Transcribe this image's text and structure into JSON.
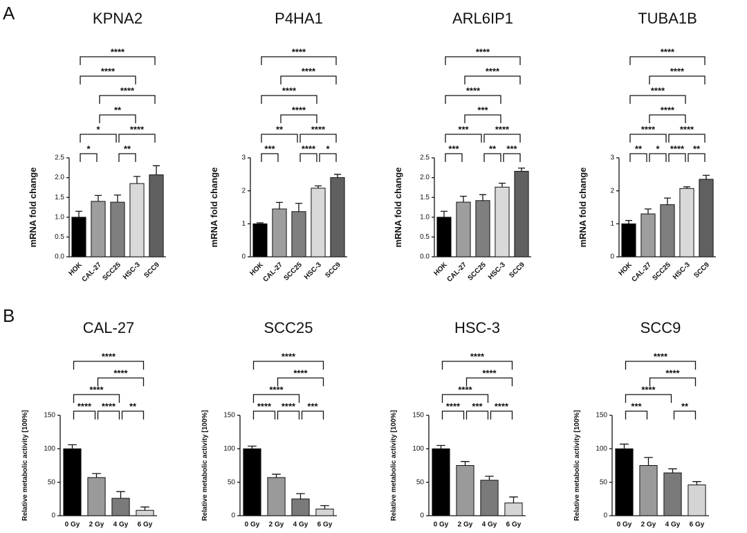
{
  "panel_labels": [
    "A",
    "B"
  ],
  "chart_data": [
    {
      "type": "bar",
      "title": "KPNA2",
      "y_label": "mRNA fold change",
      "categories": [
        "HOK",
        "CAL-27",
        "SCC25",
        "HSC-3",
        "SCC9"
      ],
      "values": [
        1.0,
        1.4,
        1.38,
        1.85,
        2.07
      ],
      "errors": [
        0.15,
        0.15,
        0.18,
        0.18,
        0.23
      ],
      "colors": [
        "#000000",
        "#9e9e9e",
        "#7f7f7f",
        "#d9d9d9",
        "#606060"
      ],
      "ylim": [
        0,
        2.5
      ],
      "yticks": [
        {
          "value": 0,
          "label": "0.0"
        },
        0.5,
        {
          "value": 1,
          "label": "1.0"
        },
        1.5,
        {
          "value": 2,
          "label": "2.0"
        },
        2.5
      ],
      "brackets": [
        {
          "from": "HOK",
          "to": "SCC9",
          "label": "****"
        },
        {
          "from": "HOK",
          "to": "HSC-3",
          "label": "****"
        },
        {
          "from": "CAL-27",
          "to": "SCC9",
          "label": "****"
        },
        {
          "from": "CAL-27",
          "to": "HSC-3",
          "label": "**"
        },
        {
          "from": "HOK",
          "to": "SCC25",
          "label": "*"
        },
        {
          "from": "SCC25",
          "to": "SCC9",
          "label": "****"
        },
        {
          "from": "HOK",
          "to": "CAL-27",
          "label": "*"
        },
        {
          "from": "SCC25",
          "to": "HSC-3",
          "label": "**"
        }
      ]
    },
    {
      "type": "bar",
      "title": "P4HA1",
      "y_label": "mRNA fold change",
      "categories": [
        "HOK",
        "CAL-27",
        "SCC25",
        "HSC-3",
        "SCC9"
      ],
      "values": [
        1.0,
        1.45,
        1.37,
        2.08,
        2.4
      ],
      "errors": [
        0.03,
        0.2,
        0.25,
        0.07,
        0.1
      ],
      "colors": [
        "#000000",
        "#9e9e9e",
        "#7f7f7f",
        "#d9d9d9",
        "#606060"
      ],
      "ylim": [
        0,
        3
      ],
      "yticks": [
        0,
        1,
        2,
        3
      ],
      "brackets": [
        {
          "from": "HOK",
          "to": "SCC9",
          "label": "****"
        },
        {
          "from": "CAL-27",
          "to": "SCC9",
          "label": "****"
        },
        {
          "from": "HOK",
          "to": "HSC-3",
          "label": "****"
        },
        {
          "from": "CAL-27",
          "to": "HSC-3",
          "label": "****"
        },
        {
          "from": "HOK",
          "to": "SCC25",
          "label": "**"
        },
        {
          "from": "SCC25",
          "to": "SCC9",
          "label": "****"
        },
        {
          "from": "HOK",
          "to": "CAL-27",
          "label": "***"
        },
        {
          "from": "SCC25",
          "to": "HSC-3",
          "label": "****"
        },
        {
          "from": "HSC-3",
          "to": "SCC9",
          "label": "*"
        }
      ]
    },
    {
      "type": "bar",
      "title": "ARL6IP1",
      "y_label": "mRNA fold change",
      "categories": [
        "HOK",
        "CAL-27",
        "SCC25",
        "HSC-3",
        "SCC9"
      ],
      "values": [
        1.0,
        1.38,
        1.42,
        1.76,
        2.16
      ],
      "errors": [
        0.15,
        0.15,
        0.15,
        0.1,
        0.08
      ],
      "colors": [
        "#000000",
        "#9e9e9e",
        "#7f7f7f",
        "#d9d9d9",
        "#606060"
      ],
      "ylim": [
        0,
        2.5
      ],
      "yticks": [
        {
          "value": 0,
          "label": "0.0"
        },
        0.5,
        {
          "value": 1,
          "label": "1.0"
        },
        1.5,
        {
          "value": 2,
          "label": "2.0"
        },
        2.5
      ],
      "brackets": [
        {
          "from": "HOK",
          "to": "SCC9",
          "label": "****"
        },
        {
          "from": "CAL-27",
          "to": "SCC9",
          "label": "****"
        },
        {
          "from": "HOK",
          "to": "HSC-3",
          "label": "****"
        },
        {
          "from": "CAL-27",
          "to": "HSC-3",
          "label": "***"
        },
        {
          "from": "HOK",
          "to": "SCC25",
          "label": "***"
        },
        {
          "from": "SCC25",
          "to": "SCC9",
          "label": "****"
        },
        {
          "from": "HOK",
          "to": "CAL-27",
          "label": "***"
        },
        {
          "from": "SCC25",
          "to": "HSC-3",
          "label": "**"
        },
        {
          "from": "HSC-3",
          "to": "SCC9",
          "label": "***"
        }
      ]
    },
    {
      "type": "bar",
      "title": "TUBA1B",
      "y_label": "mRNA fold change",
      "categories": [
        "HOK",
        "CAL-27",
        "SCC25",
        "HSC-3",
        "SCC9"
      ],
      "values": [
        1.0,
        1.3,
        1.58,
        2.07,
        2.35
      ],
      "errors": [
        0.1,
        0.15,
        0.2,
        0.05,
        0.12
      ],
      "colors": [
        "#000000",
        "#9e9e9e",
        "#7f7f7f",
        "#d9d9d9",
        "#606060"
      ],
      "ylim": [
        0,
        3
      ],
      "yticks": [
        0,
        1,
        2,
        3
      ],
      "brackets": [
        {
          "from": "HOK",
          "to": "SCC9",
          "label": "****"
        },
        {
          "from": "CAL-27",
          "to": "SCC9",
          "label": "****"
        },
        {
          "from": "HOK",
          "to": "HSC-3",
          "label": "****"
        },
        {
          "from": "CAL-27",
          "to": "HSC-3",
          "label": "****"
        },
        {
          "from": "HOK",
          "to": "SCC25",
          "label": "****"
        },
        {
          "from": "SCC25",
          "to": "SCC9",
          "label": "****"
        },
        {
          "from": "HOK",
          "to": "CAL-27",
          "label": "**"
        },
        {
          "from": "CAL-27",
          "to": "SCC25",
          "label": "*"
        },
        {
          "from": "SCC25",
          "to": "HSC-3",
          "label": "****"
        },
        {
          "from": "HSC-3",
          "to": "SCC9",
          "label": "**"
        }
      ]
    },
    {
      "type": "bar",
      "title": "CAL-27",
      "y_label": "Relative metabolic activity [100%]",
      "categories": [
        "0 Gy",
        "2 Gy",
        "4 Gy",
        "6 Gy"
      ],
      "values": [
        100,
        57,
        26,
        8
      ],
      "errors": [
        6,
        6,
        10,
        5
      ],
      "colors": [
        "#000000",
        "#9a9a9a",
        "#7a7a7a",
        "#d4d4d4"
      ],
      "ylim": [
        0,
        150
      ],
      "yticks": [
        0,
        50,
        100,
        150
      ],
      "brackets": [
        {
          "from": "0 Gy",
          "to": "6 Gy",
          "label": "****"
        },
        {
          "from": "2 Gy",
          "to": "6 Gy",
          "label": "****"
        },
        {
          "from": "0 Gy",
          "to": "4 Gy",
          "label": "****"
        },
        {
          "from": "0 Gy",
          "to": "2 Gy",
          "label": "****"
        },
        {
          "from": "2 Gy",
          "to": "4 Gy",
          "label": "****"
        },
        {
          "from": "4 Gy",
          "to": "6 Gy",
          "label": "**"
        }
      ]
    },
    {
      "type": "bar",
      "title": "SCC25",
      "y_label": "Relative metabolic activity [100%]",
      "categories": [
        "0 Gy",
        "2 Gy",
        "4 Gy",
        "6 Gy"
      ],
      "values": [
        100,
        57,
        25,
        10
      ],
      "errors": [
        4,
        5,
        8,
        5
      ],
      "colors": [
        "#000000",
        "#9a9a9a",
        "#7a7a7a",
        "#d4d4d4"
      ],
      "ylim": [
        0,
        150
      ],
      "yticks": [
        0,
        50,
        100,
        150
      ],
      "brackets": [
        {
          "from": "0 Gy",
          "to": "6 Gy",
          "label": "****"
        },
        {
          "from": "2 Gy",
          "to": "6 Gy",
          "label": "****"
        },
        {
          "from": "0 Gy",
          "to": "4 Gy",
          "label": "****"
        },
        {
          "from": "0 Gy",
          "to": "2 Gy",
          "label": "****"
        },
        {
          "from": "2 Gy",
          "to": "4 Gy",
          "label": "****"
        },
        {
          "from": "4 Gy",
          "to": "6 Gy",
          "label": "***"
        }
      ]
    },
    {
      "type": "bar",
      "title": "HSC-3",
      "y_label": "Relative metabolic activity [100%]",
      "categories": [
        "0 Gy",
        "2 Gy",
        "4 Gy",
        "6 Gy"
      ],
      "values": [
        100,
        75,
        53,
        19
      ],
      "errors": [
        5,
        6,
        6,
        9
      ],
      "colors": [
        "#000000",
        "#9a9a9a",
        "#7a7a7a",
        "#d4d4d4"
      ],
      "ylim": [
        0,
        150
      ],
      "yticks": [
        0,
        50,
        100,
        150
      ],
      "brackets": [
        {
          "from": "0 Gy",
          "to": "6 Gy",
          "label": "****"
        },
        {
          "from": "2 Gy",
          "to": "6 Gy",
          "label": "****"
        },
        {
          "from": "0 Gy",
          "to": "4 Gy",
          "label": "****"
        },
        {
          "from": "0 Gy",
          "to": "2 Gy",
          "label": "****"
        },
        {
          "from": "2 Gy",
          "to": "4 Gy",
          "label": "***"
        },
        {
          "from": "4 Gy",
          "to": "6 Gy",
          "label": "****"
        }
      ]
    },
    {
      "type": "bar",
      "title": "SCC9",
      "y_label": "Relative metabolic activity [100%]",
      "categories": [
        "0 Gy",
        "2 Gy",
        "4 Gy",
        "6 Gy"
      ],
      "values": [
        100,
        75,
        64,
        46
      ],
      "errors": [
        7,
        12,
        6,
        5
      ],
      "colors": [
        "#000000",
        "#9a9a9a",
        "#7a7a7a",
        "#d4d4d4"
      ],
      "ylim": [
        0,
        150
      ],
      "yticks": [
        0,
        50,
        100,
        150
      ],
      "brackets": [
        {
          "from": "0 Gy",
          "to": "6 Gy",
          "label": "****"
        },
        {
          "from": "2 Gy",
          "to": "6 Gy",
          "label": "****"
        },
        {
          "from": "0 Gy",
          "to": "4 Gy",
          "label": "****"
        },
        {
          "from": "0 Gy",
          "to": "2 Gy",
          "label": "***"
        },
        {
          "from": "4 Gy",
          "to": "6 Gy",
          "label": "**"
        }
      ]
    }
  ]
}
